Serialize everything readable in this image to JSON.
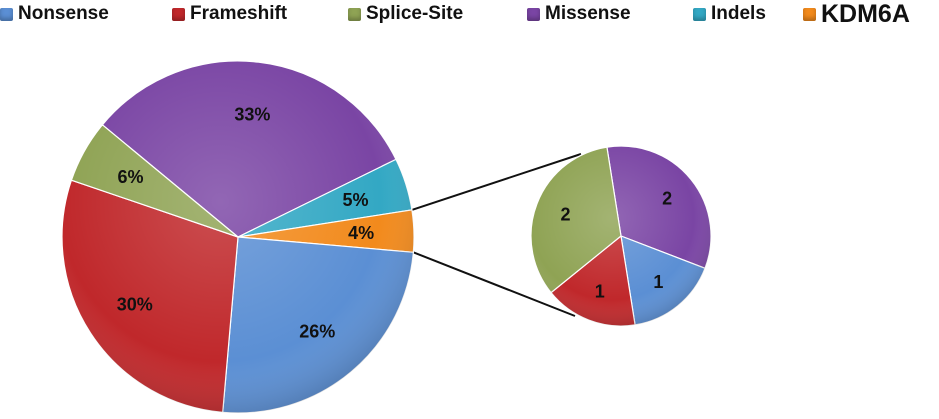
{
  "chart_data": {
    "type": "pie",
    "legend_position": "top",
    "legend": [
      {
        "label": "Nonsense",
        "color": "#5b8fd4"
      },
      {
        "label": "Frameshift",
        "color": "#c0282b"
      },
      {
        "label": "Splice-Site",
        "color": "#8fa354"
      },
      {
        "label": "Missense",
        "color": "#7a45a4"
      },
      {
        "label": "Indels",
        "color": "#33a8c4"
      },
      {
        "label": "KDM6A",
        "color": "#f28a1c"
      }
    ],
    "main_pie": {
      "slices": [
        {
          "label": "Missense",
          "value": 33,
          "text": "33%",
          "color": "#7a45a4"
        },
        {
          "label": "Indels",
          "value": 5,
          "text": "5%",
          "color": "#33a8c4"
        },
        {
          "label": "KDM6A",
          "value": 4,
          "text": "4%",
          "color": "#f28a1c"
        },
        {
          "label": "Nonsense",
          "value": 26,
          "text": "26%",
          "color": "#5b8fd4"
        },
        {
          "label": "Frameshift",
          "value": 30,
          "text": "30%",
          "color": "#c0282b"
        },
        {
          "label": "Splice-Site",
          "value": 6,
          "text": "6%",
          "color": "#8fa354"
        }
      ]
    },
    "detail_pie": {
      "parent_slice": "KDM6A",
      "slices": [
        {
          "label": "Missense",
          "value": 2,
          "text": "2",
          "color": "#7a45a4"
        },
        {
          "label": "Nonsense",
          "value": 1,
          "text": "1",
          "color": "#5b8fd4"
        },
        {
          "label": "Frameshift",
          "value": 1,
          "text": "1",
          "color": "#c0282b"
        },
        {
          "label": "Splice-Site",
          "value": 2,
          "text": "2",
          "color": "#8fa354"
        }
      ]
    }
  }
}
